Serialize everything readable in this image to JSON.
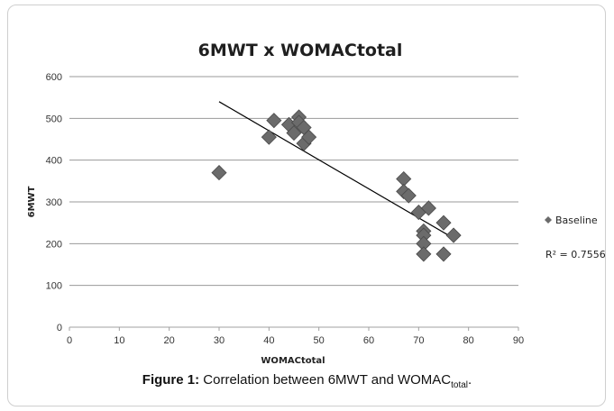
{
  "chart_data": {
    "type": "scatter",
    "title": "6MWT x WOMACtotal",
    "xlabel": "WOMACtotal",
    "ylabel": "6MWT",
    "xlim": [
      0,
      90
    ],
    "ylim": [
      0,
      600
    ],
    "xticks": [
      0,
      10,
      20,
      30,
      40,
      50,
      60,
      70,
      80,
      90
    ],
    "yticks": [
      0,
      100,
      200,
      300,
      400,
      500,
      600
    ],
    "grid": "horizontal",
    "legend_position": "right",
    "series": [
      {
        "name": "Baseline",
        "marker": "diamond",
        "color": "#6b6b6b",
        "points": [
          {
            "x": 30,
            "y": 370
          },
          {
            "x": 40,
            "y": 455
          },
          {
            "x": 41,
            "y": 495
          },
          {
            "x": 44,
            "y": 485
          },
          {
            "x": 45,
            "y": 465
          },
          {
            "x": 46,
            "y": 503
          },
          {
            "x": 46,
            "y": 490
          },
          {
            "x": 47,
            "y": 440
          },
          {
            "x": 47,
            "y": 478
          },
          {
            "x": 48,
            "y": 455
          },
          {
            "x": 67,
            "y": 355
          },
          {
            "x": 67,
            "y": 325
          },
          {
            "x": 68,
            "y": 315
          },
          {
            "x": 70,
            "y": 275
          },
          {
            "x": 71,
            "y": 230
          },
          {
            "x": 71,
            "y": 220
          },
          {
            "x": 71,
            "y": 200
          },
          {
            "x": 71,
            "y": 175
          },
          {
            "x": 72,
            "y": 285
          },
          {
            "x": 75,
            "y": 250
          },
          {
            "x": 75,
            "y": 175
          },
          {
            "x": 77,
            "y": 220
          }
        ]
      }
    ],
    "trendline": {
      "type": "linear",
      "x_start": 30,
      "y_start": 540,
      "x_end": 77,
      "y_end": 213,
      "color": "#000000"
    },
    "annotation": "R² = 0.7556"
  },
  "caption": {
    "prefix": "Figure 1:",
    "text": "Correlation between 6MWT and WOMAC",
    "subscript": "total",
    "suffix": "."
  }
}
